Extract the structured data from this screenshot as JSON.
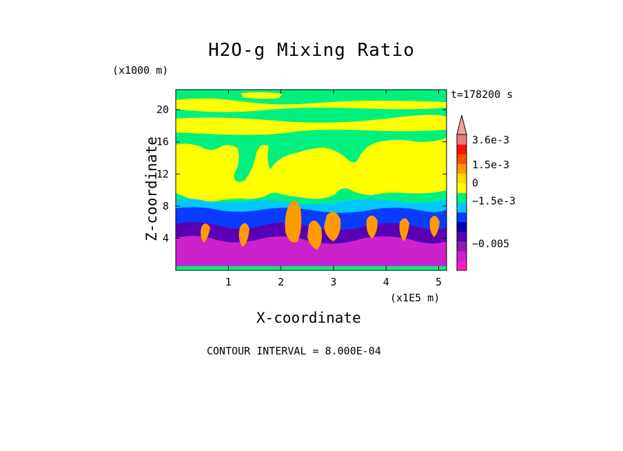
{
  "chart_data": {
    "type": "heatmap",
    "title": "H2O-g Mixing Ratio",
    "xlabel": "X-coordinate",
    "ylabel": "Z-coordinate",
    "x_units": "(x1E5 m)",
    "z_units": "(x1000 m)",
    "time_label": "t=178200 s",
    "contour_note": "CONTOUR INTERVAL = 8.000E-04",
    "xlim": [
      0,
      5.15
    ],
    "ylim": [
      0,
      22.5
    ],
    "x_ticks": [
      1,
      2,
      3,
      4,
      5
    ],
    "x_tick_labels": [
      "1",
      "2",
      "3",
      "4",
      "5"
    ],
    "y_ticks": [
      4,
      8,
      12,
      16,
      20
    ],
    "y_tick_labels": [
      "4",
      "8",
      "12",
      "16",
      "20"
    ],
    "colorbar": {
      "levels": [
        "-0.0068",
        "-0.006",
        "-0.0052",
        "-0.0044",
        "-0.0036",
        "-0.0028",
        "-0.002",
        "-0.0012",
        "-0.0004",
        "0.0004",
        "0.0012",
        "0.002",
        "0.0028",
        "0.0036"
      ],
      "colors": [
        "#ff1cc8",
        "#cc22cc",
        "#8c1ca8",
        "#5a00b4",
        "#0000aa",
        "#0a3cff",
        "#00c8ff",
        "#00f080",
        "#ffff00",
        "#ffd800",
        "#ff9a00",
        "#ff5000",
        "#ff1000",
        "#f07a7a"
      ],
      "labels": [
        "3.6e-3",
        "1.5e-3",
        "0",
        "−1.5e-3",
        "−0.005"
      ],
      "label_values": [
        0.0036,
        0.0015,
        0,
        -0.0015,
        -0.005
      ],
      "overflow_color": "#f2a0a0"
    },
    "colors": {
      "upper_air": "#00f080",
      "dry_upper": "#ffff00",
      "moist_core": "#ff9a00",
      "boundary_layer": "#cc22cc",
      "mid_blue": "#0a3cff",
      "cyan": "#00c8ff",
      "deep_purple": "#5a00b4"
    }
  }
}
